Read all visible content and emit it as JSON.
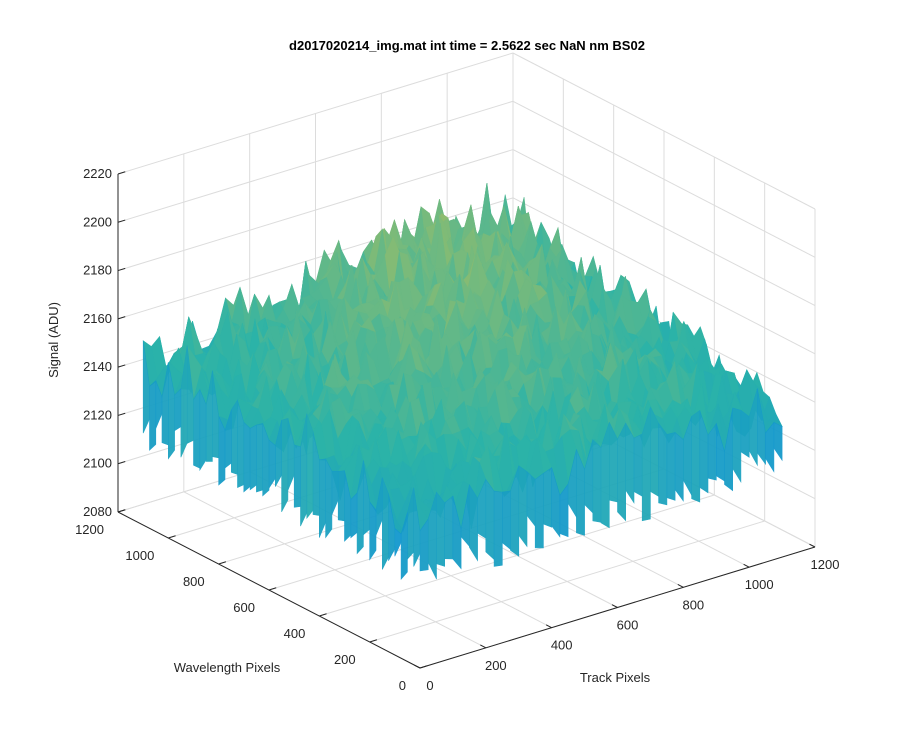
{
  "chart_data": {
    "type": "surface",
    "title": "d2017020214_img.mat int time = 2.5622 sec  NaN nm BS02",
    "xlabel": "Track Pixels",
    "ylabel": "Wavelength Pixels",
    "zlabel": "Signal (ADU)",
    "xlim": [
      0,
      1200
    ],
    "ylim": [
      0,
      1200
    ],
    "zlim": [
      2080,
      2220
    ],
    "x_ticks": [
      0,
      200,
      400,
      600,
      800,
      1000,
      1200
    ],
    "y_ticks": [
      0,
      200,
      400,
      600,
      800,
      1000,
      1200
    ],
    "z_ticks": [
      2080,
      2100,
      2120,
      2140,
      2160,
      2180,
      2200,
      2220
    ],
    "x_tick_labels": [
      "0",
      "200",
      "400",
      "600",
      "800",
      "1000",
      "1200"
    ],
    "y_tick_labels": [
      "0",
      "200",
      "400",
      "600",
      "800",
      "1000",
      "1200"
    ],
    "z_tick_labels": [
      "2080",
      "2100",
      "2120",
      "2140",
      "2160",
      "2180",
      "2200",
      "2220"
    ],
    "data_extent": {
      "x": [
        0,
        1100
      ],
      "y": [
        0,
        1100
      ]
    },
    "surface_grid": {
      "x": [
        0,
        275,
        550,
        825,
        1100
      ],
      "y": [
        0,
        275,
        550,
        825,
        1100
      ],
      "z_rows_by_y": [
        [
          2140,
          2147,
          2150,
          2148,
          2141
        ],
        [
          2146,
          2154,
          2158,
          2156,
          2146
        ],
        [
          2150,
          2158,
          2164,
          2162,
          2152
        ],
        [
          2148,
          2156,
          2166,
          2168,
          2156
        ],
        [
          2145,
          2152,
          2162,
          2170,
          2160
        ]
      ]
    },
    "grid": true,
    "colormap": "parula",
    "colors": {
      "low": "#0a8ddc",
      "mid": "#2bb3a8",
      "high": "#e8c43a",
      "axis": "#262626",
      "grid": "#dcdcdc"
    }
  }
}
